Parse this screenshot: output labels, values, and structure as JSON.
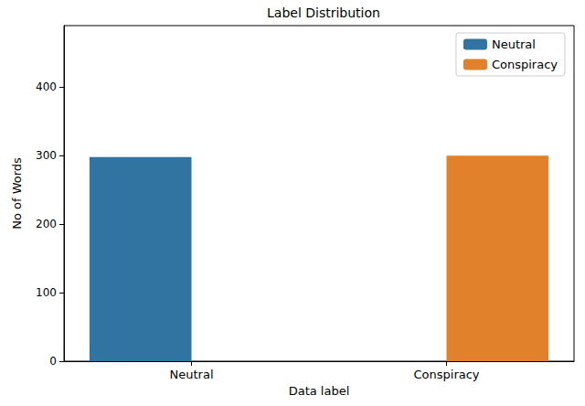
{
  "chart_data": {
    "type": "bar",
    "title": "Label Distribution",
    "x_label": "Data label",
    "y_label": "No of Words",
    "categories": [
      "Neutral",
      "Conspiracy"
    ],
    "series": [
      {
        "name": "Neutral",
        "color": "#3274a1",
        "values": [
          298,
          null
        ]
      },
      {
        "name": "Conspiracy",
        "color": "#e1812c",
        "values": [
          null,
          300
        ]
      }
    ],
    "ylim": [
      0,
      490
    ],
    "yticks": [
      0,
      100,
      200,
      300,
      400
    ],
    "grid": false,
    "legend": "upper right"
  }
}
